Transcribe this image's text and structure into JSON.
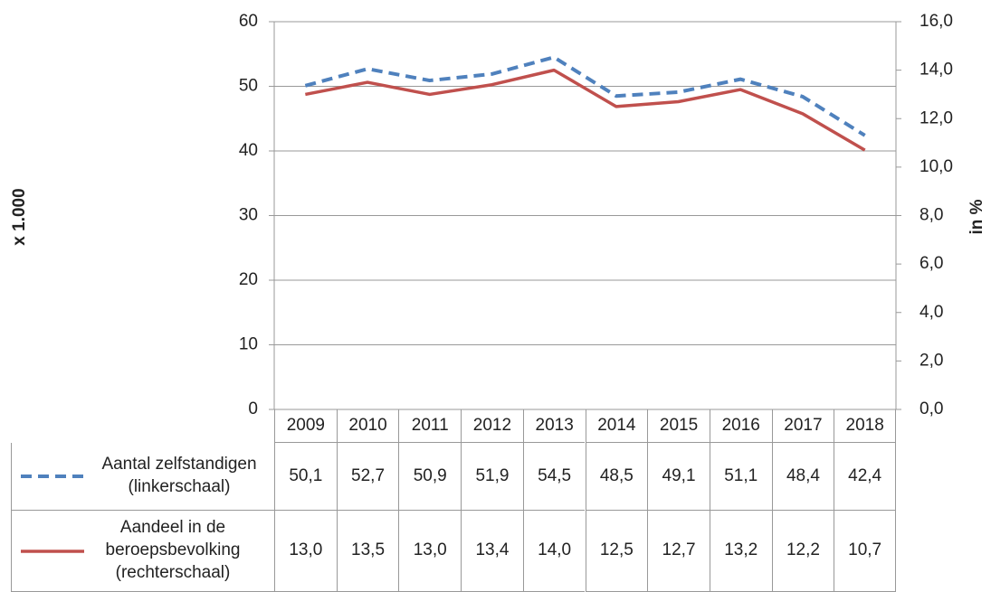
{
  "chart_data": {
    "type": "line",
    "ylabel": "x 1.000",
    "y2label": "in %",
    "categories": [
      "2009",
      "2010",
      "2011",
      "2012",
      "2013",
      "2014",
      "2015",
      "2016",
      "2017",
      "2018"
    ],
    "ylim": [
      0,
      60
    ],
    "yticks": [
      0,
      10,
      20,
      30,
      40,
      50,
      60
    ],
    "y2lim": [
      0,
      16
    ],
    "y2ticks": [
      {
        "value": 0,
        "label": "0,0"
      },
      {
        "value": 2,
        "label": "2,0"
      },
      {
        "value": 4,
        "label": "4,0"
      },
      {
        "value": 6,
        "label": "6,0"
      },
      {
        "value": 8,
        "label": "8,0"
      },
      {
        "value": 10,
        "label": "10,0"
      },
      {
        "value": 12,
        "label": "12,0"
      },
      {
        "value": 14,
        "label": "14,0"
      },
      {
        "value": 16,
        "label": "16,0"
      }
    ],
    "grid": true,
    "series": [
      {
        "name": "Aantal zelfstandigen (linkerschaal)",
        "color": "#4f81bd",
        "dash": true,
        "axis": "y",
        "values": [
          50.1,
          52.7,
          50.9,
          51.9,
          54.5,
          48.5,
          49.1,
          51.1,
          48.4,
          42.4
        ],
        "value_labels": [
          "50,1",
          "52,7",
          "50,9",
          "51,9",
          "54,5",
          "48,5",
          "49,1",
          "51,1",
          "48,4",
          "42,4"
        ]
      },
      {
        "name": "Aandeel in de beroepsbevolking (rechterschaal)",
        "color": "#c0504d",
        "dash": false,
        "axis": "y2",
        "values": [
          13.0,
          13.5,
          13.0,
          13.4,
          14.0,
          12.5,
          12.7,
          13.2,
          12.2,
          10.7
        ],
        "value_labels": [
          "13,0",
          "13,5",
          "13,0",
          "13,4",
          "14,0",
          "12,5",
          "12,7",
          "13,2",
          "12,2",
          "10,7"
        ]
      }
    ]
  }
}
